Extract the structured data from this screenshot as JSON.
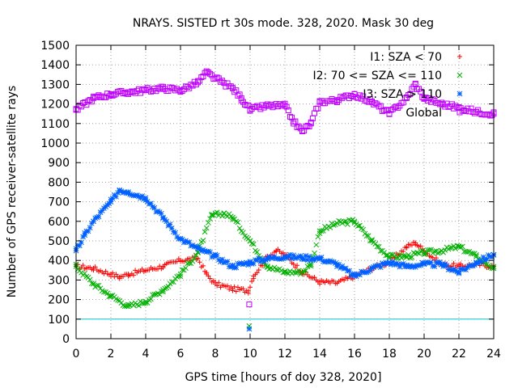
{
  "chart_data": {
    "type": "scatter",
    "title": "NRAYS. SISTED rt 30s mode. 328, 2020. Mask 30 deg",
    "xlabel": "GPS time [hours of doy 328, 2020]",
    "ylabel": "Number of GPS receiver-satellite rays",
    "xlim": [
      0,
      24
    ],
    "ylim": [
      0,
      1500
    ],
    "xticks": [
      0,
      2,
      4,
      6,
      8,
      10,
      12,
      14,
      16,
      18,
      20,
      22,
      24
    ],
    "yticks": [
      0,
      100,
      200,
      300,
      400,
      500,
      600,
      700,
      800,
      900,
      1000,
      1100,
      1200,
      1300,
      1400,
      1500
    ],
    "grid": true,
    "legend_position": "top-right",
    "threshold_line": {
      "y": 100,
      "color": "#00cccc"
    },
    "series": [
      {
        "name": "I1: SZA < 70",
        "marker": "+",
        "color": "#ff0000",
        "x": [
          0,
          1,
          2,
          2.5,
          3,
          4,
          5,
          6,
          7,
          7.5,
          8,
          9,
          9.9,
          10.2,
          11,
          11.5,
          12,
          13,
          14,
          15,
          16,
          17,
          18,
          19,
          19.5,
          20,
          21,
          22,
          23,
          24
        ],
        "y": [
          370,
          360,
          330,
          315,
          330,
          350,
          370,
          400,
          410,
          330,
          280,
          255,
          245,
          320,
          420,
          450,
          430,
          340,
          290,
          285,
          320,
          360,
          390,
          470,
          490,
          450,
          380,
          370,
          380,
          370
        ]
      },
      {
        "name": "I2: 70 <= SZA <= 110",
        "marker": "x",
        "color": "#00b000",
        "x": [
          0,
          1,
          2,
          3,
          4,
          5,
          6,
          7,
          7.8,
          8.5,
          9,
          10,
          11,
          12,
          13,
          13.5,
          14,
          15,
          16,
          17,
          18,
          19,
          20,
          21,
          22,
          23,
          24
        ],
        "y": [
          370,
          280,
          220,
          165,
          190,
          250,
          330,
          440,
          630,
          640,
          620,
          500,
          370,
          340,
          340,
          380,
          550,
          590,
          600,
          500,
          420,
          420,
          440,
          450,
          470,
          420,
          360
        ]
      },
      {
        "name": "I3: SZA > 110",
        "marker": "*",
        "color": "#0060ff",
        "x": [
          0,
          0.5,
          1,
          2,
          2.5,
          3,
          4,
          5,
          6,
          7,
          8,
          9,
          10,
          11,
          12,
          13,
          14,
          15,
          16,
          17,
          18,
          19,
          20,
          21,
          22,
          23,
          24
        ],
        "y": [
          450,
          530,
          600,
          700,
          760,
          750,
          720,
          620,
          510,
          460,
          420,
          370,
          390,
          410,
          420,
          415,
          410,
          380,
          320,
          360,
          390,
          370,
          380,
          380,
          340,
          390,
          430
        ]
      },
      {
        "name": "Global",
        "marker": "square",
        "color": "#c000ff",
        "x": [
          0,
          1,
          2,
          3,
          4,
          5,
          6,
          7,
          7.5,
          8,
          9,
          9.5,
          10,
          11,
          12,
          12.5,
          13,
          13.5,
          14,
          15,
          16,
          17,
          18,
          19,
          19.5,
          20,
          21,
          22,
          23,
          24
        ],
        "y": [
          1170,
          1230,
          1250,
          1260,
          1270,
          1280,
          1270,
          1310,
          1360,
          1330,
          1280,
          1230,
          1170,
          1190,
          1190,
          1110,
          1060,
          1100,
          1210,
          1220,
          1250,
          1210,
          1150,
          1230,
          1300,
          1230,
          1200,
          1180,
          1160,
          1150
        ]
      }
    ],
    "outliers": [
      {
        "series": "Global",
        "x": 9.95,
        "y": 175
      },
      {
        "series": "I2: 70 <= SZA <= 110",
        "x": 9.95,
        "y": 65
      },
      {
        "series": "I3: SZA > 110",
        "x": 9.95,
        "y": 50
      }
    ]
  }
}
